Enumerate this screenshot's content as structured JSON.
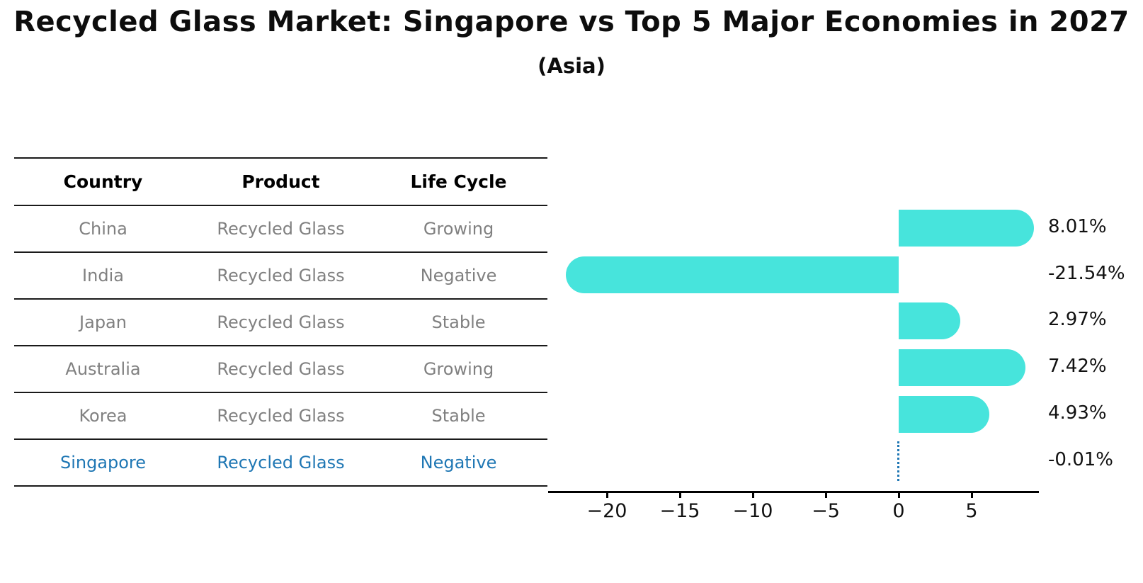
{
  "title": "Recycled Glass Market: Singapore vs Top 5 Major Economies in 2027",
  "subtitle": "(Asia)",
  "table": {
    "headers": [
      "Country",
      "Product",
      "Life Cycle"
    ],
    "rows": [
      {
        "country": "China",
        "product": "Recycled Glass",
        "life_cycle": "Growing",
        "highlighted": false
      },
      {
        "country": "India",
        "product": "Recycled Glass",
        "life_cycle": "Negative",
        "highlighted": false
      },
      {
        "country": "Japan",
        "product": "Recycled Glass",
        "life_cycle": "Stable",
        "highlighted": false
      },
      {
        "country": "Australia",
        "product": "Recycled Glass",
        "life_cycle": "Growing",
        "highlighted": false
      },
      {
        "country": "Korea",
        "product": "Recycled Glass",
        "life_cycle": "Stable",
        "highlighted": false
      },
      {
        "country": "Singapore",
        "product": "Recycled Glass",
        "life_cycle": "Negative",
        "highlighted": true
      }
    ]
  },
  "chart_data": {
    "type": "bar",
    "orientation": "horizontal",
    "title": "Recycled Glass Market: Singapore vs Top 5 Major Economies in 2027",
    "subtitle": "(Asia)",
    "categories": [
      "China",
      "India",
      "Japan",
      "Australia",
      "Korea",
      "Singapore"
    ],
    "values": [
      8.01,
      -21.54,
      2.97,
      7.42,
      4.93,
      -0.01
    ],
    "value_labels": [
      "8.01%",
      "-21.54%",
      "2.97%",
      "7.42%",
      "4.93%",
      "-0.01%"
    ],
    "x_ticks": [
      {
        "value": -20,
        "label": "−20"
      },
      {
        "value": -15,
        "label": "−15"
      },
      {
        "value": -10,
        "label": "−10"
      },
      {
        "value": -5,
        "label": "−5"
      },
      {
        "value": 0,
        "label": "0"
      },
      {
        "value": 5,
        "label": "5"
      }
    ],
    "xlim": [
      -23.8,
      9.6
    ],
    "xlabel": "",
    "ylabel": "",
    "grid": false,
    "legend": null,
    "highlight_index": 5,
    "highlight_style": "dotted-zero-line"
  },
  "colors": {
    "bar": "#47E4DC",
    "highlight_blue": "#1f77b4",
    "table_text_gray": "#808080",
    "header_text": "#000000",
    "rule_line": "#1a1a1a",
    "axis_black": "#000000"
  }
}
